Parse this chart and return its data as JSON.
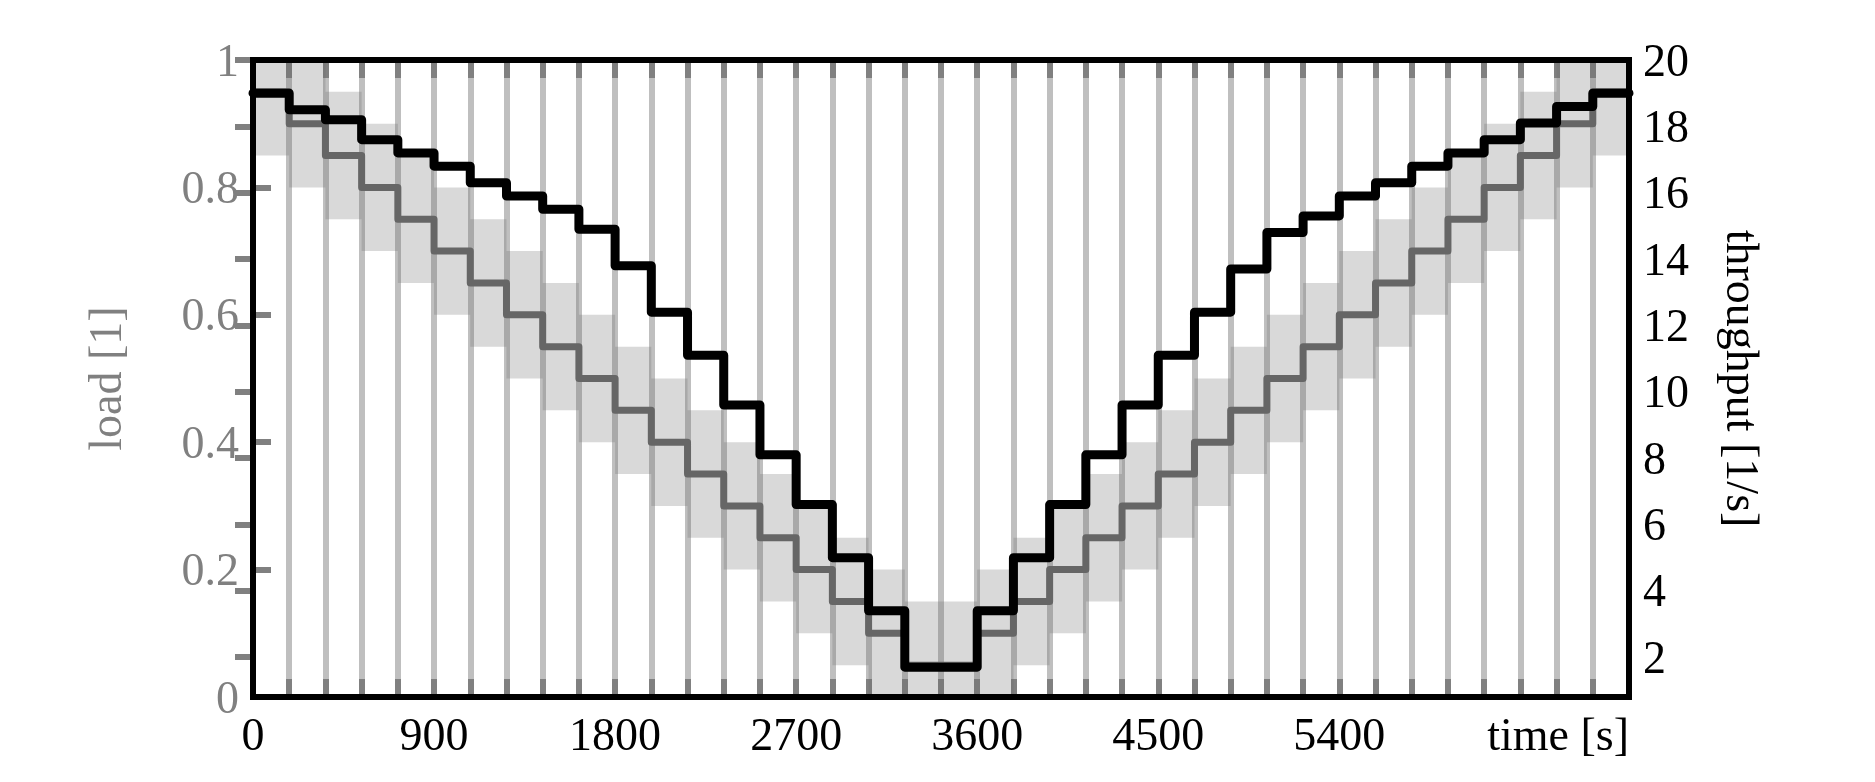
{
  "chart_data": {
    "type": "step",
    "xlabel": "time [s]",
    "ylabel": "load [1]",
    "y2label": "throughput [1/s]",
    "x": [
      0,
      180,
      360,
      540,
      720,
      900,
      1080,
      1260,
      1440,
      1620,
      1800,
      1980,
      2160,
      2340,
      2520,
      2700,
      2880,
      3060,
      3240,
      3420,
      3600,
      3780,
      3960,
      4140,
      4320,
      4500,
      4680,
      4860,
      5040,
      5220,
      5400,
      5580,
      5760,
      5940,
      6120,
      6300,
      6480,
      6660,
      6840
    ],
    "series": [
      {
        "color": "#666666",
        "axis": "y",
        "values": [
          0.95,
          0.9,
          0.85,
          0.8,
          0.75,
          0.7,
          0.65,
          0.6,
          0.55,
          0.5,
          0.45,
          0.4,
          0.35,
          0.3,
          0.25,
          0.2,
          0.15,
          0.1,
          0.05,
          0.05,
          0.1,
          0.15,
          0.2,
          0.25,
          0.3,
          0.35,
          0.4,
          0.45,
          0.5,
          0.55,
          0.6,
          0.65,
          0.7,
          0.75,
          0.8,
          0.85,
          0.9,
          0.95,
          0.95
        ],
        "lower": [
          0.85,
          0.8,
          0.75,
          0.7,
          0.65,
          0.6,
          0.55,
          0.5,
          0.45,
          0.4,
          0.35,
          0.3,
          0.25,
          0.2,
          0.15,
          0.1,
          0.05,
          0,
          0,
          0,
          0,
          0.05,
          0.1,
          0.15,
          0.2,
          0.25,
          0.3,
          0.35,
          0.4,
          0.45,
          0.5,
          0.55,
          0.6,
          0.65,
          0.7,
          0.75,
          0.8,
          0.85,
          0.85
        ],
        "upper": [
          1,
          1,
          0.95,
          0.9,
          0.85,
          0.8,
          0.75,
          0.7,
          0.65,
          0.6,
          0.55,
          0.5,
          0.45,
          0.4,
          0.35,
          0.3,
          0.25,
          0.2,
          0.15,
          0.15,
          0.2,
          0.25,
          0.3,
          0.35,
          0.4,
          0.45,
          0.5,
          0.55,
          0.6,
          0.65,
          0.7,
          0.75,
          0.8,
          0.85,
          0.9,
          0.95,
          1,
          1,
          1
        ]
      },
      {
        "color": "#000000",
        "axis": "y2",
        "values": [
          19.0,
          18.5,
          18.2,
          17.6,
          17.2,
          16.8,
          16.3,
          15.9,
          15.5,
          14.9,
          13.8,
          12.4,
          11.1,
          9.6,
          8.1,
          6.6,
          5.0,
          3.4,
          1.7,
          1.7,
          3.4,
          5.0,
          6.6,
          8.1,
          9.6,
          11.1,
          12.4,
          13.7,
          14.8,
          15.3,
          15.9,
          16.3,
          16.8,
          17.2,
          17.6,
          18.1,
          18.6,
          19.0,
          19.0
        ]
      }
    ],
    "xlim": [
      0,
      6840
    ],
    "xticks": [
      0,
      {
        "value": 180,
        "label": null
      },
      {
        "value": 360,
        "label": null
      },
      {
        "value": 540,
        "label": null
      },
      {
        "value": 720,
        "label": null
      },
      900,
      {
        "value": 1080,
        "label": null
      },
      {
        "value": 1260,
        "label": null
      },
      {
        "value": 1440,
        "label": null
      },
      {
        "value": 1620,
        "label": null
      },
      1800,
      {
        "value": 1980,
        "label": null
      },
      {
        "value": 2160,
        "label": null
      },
      {
        "value": 2340,
        "label": null
      },
      {
        "value": 2520,
        "label": null
      },
      2700,
      {
        "value": 2880,
        "label": null
      },
      {
        "value": 3060,
        "label": null
      },
      {
        "value": 3240,
        "label": null
      },
      {
        "value": 3420,
        "label": null
      },
      3600,
      {
        "value": 3780,
        "label": null
      },
      {
        "value": 3960,
        "label": null
      },
      {
        "value": 4140,
        "label": null
      },
      {
        "value": 4320,
        "label": null
      },
      4500,
      {
        "value": 4680,
        "label": null
      },
      {
        "value": 4860,
        "label": null
      },
      {
        "value": 5040,
        "label": null
      },
      {
        "value": 5220,
        "label": null
      },
      5400,
      {
        "value": 5580,
        "label": null
      },
      {
        "value": 5760,
        "label": null
      },
      {
        "value": 5940,
        "label": null
      },
      {
        "value": 6120,
        "label": null
      },
      {
        "value": 6300,
        "label": null
      },
      {
        "value": 6480,
        "label": null
      },
      {
        "value": 6660,
        "label": null
      },
      {
        "value": 6840,
        "label": null
      }
    ],
    "ylim": [
      0,
      1
    ],
    "yticks": [
      0,
      0.2,
      0.4,
      0.6,
      0.8,
      1
    ],
    "y2lim": [
      0.8,
      20
    ],
    "y2ticks": [
      2,
      4,
      6,
      8,
      10,
      12,
      14,
      16,
      18,
      20
    ],
    "grid": "x",
    "marker": "none",
    "line_style": "solid"
  }
}
